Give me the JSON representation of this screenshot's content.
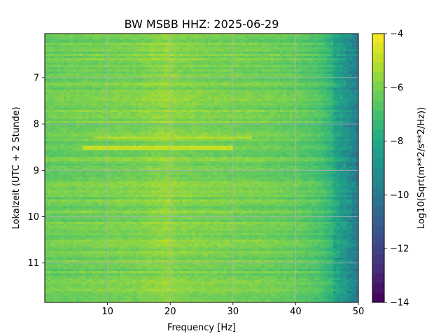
{
  "chart_data": {
    "type": "heatmap",
    "title": "BW MSBB  HHZ: 2025-06-29",
    "xlabel": "Frequency [Hz]",
    "ylabel": "Lokalzeit (UTC + 2 Stunde)",
    "xlim": [
      0,
      50
    ],
    "ylim": [
      6.05,
      11.85
    ],
    "y_inverted": true,
    "grid": true,
    "colormap": "viridis",
    "x_ticks": [
      {
        "value": 10,
        "label": "10"
      },
      {
        "value": 20,
        "label": "20"
      },
      {
        "value": 30,
        "label": "30"
      },
      {
        "value": 40,
        "label": "40"
      },
      {
        "value": 50,
        "label": "50"
      }
    ],
    "y_ticks": [
      {
        "value": 7,
        "label": "7"
      },
      {
        "value": 8,
        "label": "8"
      },
      {
        "value": 9,
        "label": "9"
      },
      {
        "value": 10,
        "label": "10"
      },
      {
        "value": 11,
        "label": "11"
      }
    ],
    "colorbar": {
      "label": "Log10(Sqrt(m**2/s**2/Hz))",
      "range": [
        -14,
        -4
      ],
      "ticks": [
        {
          "value": -4,
          "label": "−4"
        },
        {
          "value": -6,
          "label": "−6"
        },
        {
          "value": -8,
          "label": "−8"
        },
        {
          "value": -10,
          "label": "−10"
        },
        {
          "value": -12,
          "label": "−12"
        },
        {
          "value": -14,
          "label": "−14"
        }
      ]
    },
    "level_by_frequency": {
      "frequency_hz": [
        0,
        5,
        10,
        15,
        19,
        20,
        21,
        25,
        30,
        35,
        40,
        44,
        46,
        48,
        49,
        50
      ],
      "log10_amplitude": [
        -6.3,
        -6.2,
        -6.1,
        -6.0,
        -5.7,
        -5.6,
        -5.9,
        -6.0,
        -6.1,
        -6.2,
        -6.4,
        -6.9,
        -7.6,
        -8.4,
        -9.0,
        -9.5
      ]
    },
    "features": [
      {
        "label": "",
        "time": 8.3,
        "freq_range": [
          8,
          33
        ],
        "log10_amplitude": -5.2
      },
      {
        "label": "",
        "time": 8.52,
        "freq_range": [
          6,
          30
        ],
        "log10_amplitude": -4.9
      }
    ]
  }
}
